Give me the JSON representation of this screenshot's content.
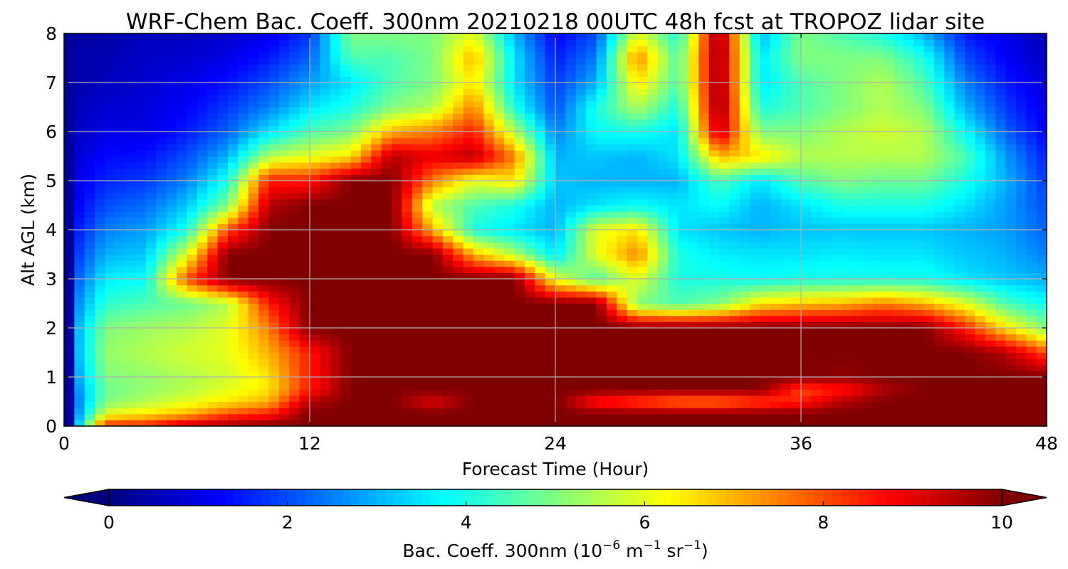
{
  "chart_data": {
    "type": "heatmap",
    "title": "WRF-Chem Bac. Coeff. 300nm  20210218 00UTC 48h fcst at TROPOZ lidar site",
    "xlabel": "Forecast Time (Hour)",
    "ylabel": "Alt AGL (km)",
    "xlim": [
      0,
      48
    ],
    "ylim": [
      0,
      8
    ],
    "xticks": [
      0,
      12,
      24,
      36,
      48
    ],
    "yticks": [
      0,
      1,
      2,
      3,
      4,
      5,
      6,
      7,
      8
    ],
    "grid": true,
    "colormap": "jet",
    "colorbar": {
      "label_prefix": "Bac. Coeff. 300nm  (10",
      "exp1": "−6",
      "mid1": " m",
      "exp2": "−1",
      "mid2": " sr",
      "exp3": "−1",
      "label_suffix": ")",
      "ticks": [
        0,
        2,
        4,
        6,
        8,
        10
      ],
      "range": [
        0,
        10
      ],
      "extend": "both",
      "orientation": "horizontal"
    },
    "profile_times": [
      0,
      2,
      4,
      6,
      8,
      10,
      12,
      14,
      16,
      18,
      20,
      22,
      24,
      26,
      28,
      30,
      32,
      34,
      36,
      38,
      40,
      42,
      44,
      46,
      48
    ],
    "altitudes": [
      0,
      0.25,
      0.5,
      0.75,
      1,
      1.5,
      2,
      2.5,
      3,
      3.5,
      4,
      4.5,
      5,
      5.5,
      6,
      6.5,
      7,
      7.5,
      8
    ],
    "values": [
      [
        0.5,
        1.0,
        1.2,
        1.5,
        1.8,
        2.0,
        2.0,
        1.8,
        1.5,
        1.2,
        1.0,
        0.8,
        0.7,
        0.6,
        0.5,
        0.5,
        0.4,
        0.4,
        0.3
      ],
      [
        8.5,
        6.0,
        5.0,
        4.8,
        5.0,
        5.2,
        5.0,
        4.2,
        3.6,
        3.0,
        2.5,
        2.0,
        1.6,
        1.3,
        1.0,
        0.8,
        0.6,
        0.5,
        0.4
      ],
      [
        8.5,
        6.5,
        5.5,
        5.2,
        5.2,
        5.5,
        5.3,
        4.5,
        3.8,
        3.2,
        2.8,
        2.3,
        1.8,
        1.4,
        1.0,
        0.9,
        0.8,
        0.7,
        0.6
      ],
      [
        9.5,
        7.0,
        6.0,
        5.5,
        5.5,
        5.8,
        5.5,
        4.8,
        8.0,
        6.0,
        4.0,
        3.2,
        2.5,
        2.0,
        1.5,
        1.2,
        1.0,
        0.8,
        0.6
      ],
      [
        9.8,
        8.0,
        6.5,
        6.0,
        5.8,
        6.0,
        6.0,
        5.5,
        10,
        10,
        8.0,
        5.0,
        4.0,
        3.0,
        2.2,
        1.8,
        1.4,
        1.0,
        0.8
      ],
      [
        10,
        8.5,
        7.0,
        6.5,
        6.5,
        7.0,
        7.5,
        8.5,
        10,
        10,
        10,
        9.5,
        8.5,
        5.5,
        3.5,
        2.5,
        2.0,
        1.5,
        1.0
      ],
      [
        10,
        10,
        9.5,
        8.5,
        8.5,
        8.5,
        10,
        10,
        10,
        10,
        10,
        10,
        8.5,
        6.0,
        4.5,
        3.5,
        2.8,
        2.2,
        1.8
      ],
      [
        10,
        10,
        10,
        10,
        10,
        10,
        10,
        10,
        10,
        10,
        10,
        10,
        10,
        6.5,
        5.0,
        4.0,
        3.5,
        4.5,
        5.0
      ],
      [
        10,
        10,
        10,
        10,
        10,
        10,
        10,
        10,
        10,
        10,
        10,
        10,
        10,
        9.5,
        7.0,
        5.0,
        4.5,
        4.5,
        5.0
      ],
      [
        10,
        10,
        9.0,
        10,
        10,
        10,
        10,
        10,
        10,
        10,
        7.0,
        5.5,
        7.5,
        9.0,
        7.5,
        5.5,
        5.0,
        5.0,
        5.0
      ],
      [
        10,
        10,
        10,
        10,
        10,
        10,
        10,
        10,
        10,
        7.0,
        4.0,
        4.5,
        6.0,
        9.5,
        8.5,
        7.5,
        6.5,
        7.0,
        6.0
      ],
      [
        10,
        10,
        10,
        10,
        10,
        10,
        10,
        10,
        10,
        5.5,
        3.5,
        4.0,
        6.5,
        7.5,
        5.5,
        4.0,
        3.5,
        3.5,
        3.0
      ],
      [
        10,
        10,
        10,
        10,
        10,
        10,
        10,
        10,
        6.0,
        3.5,
        3.0,
        3.0,
        3.2,
        3.0,
        2.5,
        2.0,
        1.8,
        1.5,
        1.2
      ],
      [
        10,
        10,
        8.5,
        10,
        10,
        10,
        10,
        10,
        4.5,
        6.0,
        6.0,
        3.5,
        3.0,
        3.2,
        3.8,
        4.0,
        3.0,
        2.5,
        2.0
      ],
      [
        10,
        10,
        8.0,
        10,
        10,
        10,
        10,
        5.0,
        6.0,
        7.5,
        6.5,
        3.8,
        3.0,
        3.0,
        4.0,
        5.5,
        6.5,
        7.5,
        6.0
      ],
      [
        10,
        10,
        7.5,
        10,
        10,
        10,
        10,
        4.5,
        4.0,
        4.0,
        3.5,
        3.5,
        3.0,
        3.5,
        3.5,
        4.0,
        4.5,
        4.5,
        4.0
      ],
      [
        10,
        10,
        7.5,
        10,
        10,
        10,
        10,
        5.0,
        4.0,
        3.6,
        3.2,
        3.8,
        4.5,
        7.0,
        9.5,
        10,
        10,
        10,
        10
      ],
      [
        10,
        10,
        8.0,
        10,
        10,
        10,
        10,
        6.5,
        3.8,
        3.5,
        3.0,
        3.0,
        3.5,
        6.5,
        5.0,
        4.0,
        3.5,
        3.5,
        3.0
      ],
      [
        10,
        10,
        8.5,
        8.0,
        10,
        10,
        10,
        6.8,
        4.0,
        3.5,
        3.2,
        3.5,
        4.5,
        5.5,
        5.0,
        4.5,
        4.5,
        5.0,
        5.0
      ],
      [
        10,
        10,
        9.5,
        8.5,
        9.8,
        10,
        10,
        7.0,
        4.0,
        3.6,
        3.2,
        4.0,
        5.0,
        5.5,
        5.5,
        5.0,
        5.0,
        5.0,
        4.5
      ],
      [
        10,
        10,
        10,
        9.5,
        10,
        10,
        10,
        7.5,
        4.0,
        3.5,
        3.2,
        4.0,
        4.8,
        5.5,
        5.8,
        5.5,
        5.5,
        5.0,
        4.0
      ],
      [
        10,
        10,
        10,
        10,
        10,
        10,
        10,
        7.0,
        4.0,
        3.5,
        3.2,
        4.0,
        4.8,
        5.5,
        5.5,
        5.0,
        4.5,
        4.0,
        3.0
      ],
      [
        10,
        10,
        10,
        10,
        10,
        10,
        8.5,
        6.0,
        3.5,
        3.2,
        3.0,
        3.5,
        4.0,
        4.5,
        3.8,
        3.0,
        2.5,
        2.0,
        1.5
      ],
      [
        10,
        10,
        10,
        10,
        10,
        9.5,
        6.5,
        4.5,
        3.2,
        3.0,
        2.8,
        2.8,
        3.0,
        2.8,
        2.2,
        1.8,
        1.5,
        1.2,
        1.0
      ],
      [
        10,
        10,
        10,
        10,
        10,
        8.0,
        5.0,
        3.8,
        3.0,
        2.5,
        2.2,
        2.0,
        1.8,
        1.5,
        1.2,
        1.0,
        0.8,
        0.6,
        0.5
      ]
    ]
  }
}
